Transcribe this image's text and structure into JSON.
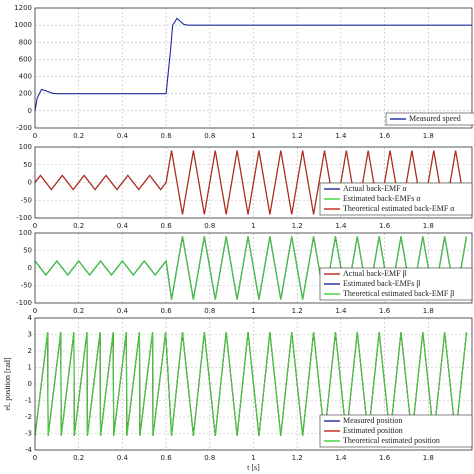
{
  "chart_data": [
    {
      "type": "line",
      "xlim": [
        0,
        2
      ],
      "xticks": [
        0,
        0.2,
        0.4,
        0.6,
        0.8,
        1,
        1.2,
        1.4,
        1.6,
        1.8
      ],
      "ylim": [
        -200,
        1200
      ],
      "yticks": [
        -200,
        0,
        200,
        400,
        600,
        800,
        1000,
        1200
      ],
      "grid": true,
      "legend": "lower right",
      "x": [
        0,
        0.01,
        0.03,
        0.05,
        0.08,
        0.1,
        0.6,
        0.62,
        0.63,
        0.65,
        0.68,
        0.7,
        2
      ],
      "series": [
        {
          "name": "Measured speed",
          "color": "#1a2a9c",
          "values": [
            0,
            150,
            250,
            235,
            205,
            200,
            200,
            700,
            1000,
            1080,
            1010,
            1000,
            1000
          ]
        }
      ]
    },
    {
      "type": "line",
      "xlim": [
        0,
        2
      ],
      "xticks": [
        0,
        0.2,
        0.4,
        0.6,
        0.8,
        1,
        1.2,
        1.4,
        1.6,
        1.8
      ],
      "ylim": [
        -100,
        100
      ],
      "yticks": [
        -100,
        -50,
        0,
        50,
        100
      ],
      "grid": true,
      "legend": "lower right",
      "x": [
        0,
        0.025,
        0.05,
        0.075,
        0.1,
        0.125,
        0.15,
        0.175,
        0.2,
        0.225,
        0.25,
        0.275,
        0.3,
        0.325,
        0.35,
        0.375,
        0.4,
        0.425,
        0.45,
        0.475,
        0.5,
        0.525,
        0.55,
        0.575,
        0.6,
        0.625,
        0.675,
        0.725,
        0.775,
        0.825,
        0.875,
        0.925,
        0.975,
        1.025,
        1.075,
        1.125,
        1.175,
        1.225,
        1.275,
        1.325,
        1.375,
        1.425,
        1.475,
        1.525,
        1.575,
        1.625,
        1.675,
        1.725,
        1.775,
        1.825,
        1.875,
        1.925,
        1.975
      ],
      "series": [
        {
          "name": "Actual back-EMF α",
          "color": "#1a2a9c",
          "values": [
            0,
            20,
            0,
            -20,
            0,
            20,
            0,
            -20,
            0,
            20,
            0,
            -20,
            0,
            20,
            0,
            -20,
            0,
            20,
            0,
            -20,
            0,
            20,
            0,
            -20,
            0,
            90,
            -90,
            90,
            -90,
            90,
            -90,
            90,
            -90,
            90,
            -90,
            90,
            -90,
            90,
            -90,
            90,
            -90,
            90,
            -90,
            90,
            -90,
            90,
            -90,
            90,
            -90,
            90,
            -90,
            90,
            -90
          ]
        },
        {
          "name": "Estimated back-EMFs α",
          "color": "#3ad23a",
          "values": [
            0,
            20,
            0,
            -20,
            0,
            20,
            0,
            -20,
            0,
            20,
            0,
            -20,
            0,
            20,
            0,
            -20,
            0,
            20,
            0,
            -20,
            0,
            20,
            0,
            -20,
            0,
            90,
            -90,
            90,
            -90,
            90,
            -90,
            90,
            -90,
            90,
            -90,
            90,
            -90,
            90,
            -90,
            90,
            -90,
            90,
            -90,
            90,
            -90,
            90,
            -90,
            90,
            -90,
            90,
            -90,
            90,
            -90
          ]
        },
        {
          "name": "Theoretical estimated back-EMF α",
          "color": "#c8201e",
          "values": [
            0,
            20,
            0,
            -20,
            0,
            20,
            0,
            -20,
            0,
            20,
            0,
            -20,
            0,
            20,
            0,
            -20,
            0,
            20,
            0,
            -20,
            0,
            20,
            0,
            -20,
            0,
            90,
            -90,
            90,
            -90,
            90,
            -90,
            90,
            -90,
            90,
            -90,
            90,
            -90,
            90,
            -90,
            90,
            -90,
            90,
            -90,
            90,
            -90,
            90,
            -90,
            90,
            -90,
            90,
            -90,
            90,
            -90
          ]
        }
      ]
    },
    {
      "type": "line",
      "xlim": [
        0,
        2
      ],
      "xticks": [
        0,
        0.2,
        0.4,
        0.6,
        0.8,
        1,
        1.2,
        1.4,
        1.6,
        1.8
      ],
      "ylim": [
        -100,
        100
      ],
      "yticks": [
        -100,
        -50,
        0,
        50,
        100
      ],
      "grid": true,
      "legend": "lower right",
      "x": [
        0,
        0.025,
        0.05,
        0.075,
        0.1,
        0.125,
        0.15,
        0.175,
        0.2,
        0.225,
        0.25,
        0.275,
        0.3,
        0.325,
        0.35,
        0.375,
        0.4,
        0.425,
        0.45,
        0.475,
        0.5,
        0.525,
        0.55,
        0.575,
        0.6,
        0.625,
        0.675,
        0.725,
        0.775,
        0.825,
        0.875,
        0.925,
        0.975,
        1.025,
        1.075,
        1.125,
        1.175,
        1.225,
        1.275,
        1.325,
        1.375,
        1.425,
        1.475,
        1.525,
        1.575,
        1.625,
        1.675,
        1.725,
        1.775,
        1.825,
        1.875,
        1.925,
        1.975
      ],
      "series": [
        {
          "name": "Actual back-EMF β",
          "color": "#c8201e",
          "values": [
            20,
            0,
            -20,
            0,
            20,
            0,
            -20,
            0,
            20,
            0,
            -20,
            0,
            20,
            0,
            -20,
            0,
            20,
            0,
            -20,
            0,
            20,
            0,
            -20,
            0,
            20,
            -90,
            90,
            -90,
            90,
            -90,
            90,
            -90,
            90,
            -90,
            90,
            -90,
            90,
            -90,
            90,
            -90,
            90,
            -90,
            90,
            -90,
            90,
            -90,
            90,
            -90,
            90,
            -90,
            90,
            -90,
            90
          ]
        },
        {
          "name": "Estimated back-EMFs β",
          "color": "#1a2a9c",
          "values": [
            20,
            0,
            -20,
            0,
            20,
            0,
            -20,
            0,
            20,
            0,
            -20,
            0,
            20,
            0,
            -20,
            0,
            20,
            0,
            -20,
            0,
            20,
            0,
            -20,
            0,
            20,
            -90,
            90,
            -90,
            90,
            -90,
            90,
            -90,
            90,
            -90,
            90,
            -90,
            90,
            -90,
            90,
            -90,
            90,
            -90,
            90,
            -90,
            90,
            -90,
            90,
            -90,
            90,
            -90,
            90,
            -90,
            90
          ]
        },
        {
          "name": "Theoretical estimated back-EMF β",
          "color": "#3ad23a",
          "values": [
            20,
            0,
            -20,
            0,
            20,
            0,
            -20,
            0,
            20,
            0,
            -20,
            0,
            20,
            0,
            -20,
            0,
            20,
            0,
            -20,
            0,
            20,
            0,
            -20,
            0,
            20,
            -90,
            90,
            -90,
            90,
            -90,
            90,
            -90,
            90,
            -90,
            90,
            -90,
            90,
            -90,
            90,
            -90,
            90,
            -90,
            90,
            -90,
            90,
            -90,
            90,
            -90,
            90,
            -90,
            90,
            -90,
            90
          ]
        }
      ]
    },
    {
      "type": "line",
      "xlim": [
        0,
        2
      ],
      "xticks": [
        0,
        0.2,
        0.4,
        0.6,
        0.8,
        1,
        1.2,
        1.4,
        1.6,
        1.8
      ],
      "ylim": [
        -4,
        4
      ],
      "yticks": [
        -4,
        -3,
        -2,
        -1,
        0,
        1,
        2,
        3,
        4
      ],
      "grid": true,
      "legend": "lower right",
      "xlabel": "t [s]",
      "ylabel": "el. position [rad]",
      "x": [
        0,
        0.058,
        0.06,
        0.118,
        0.12,
        0.178,
        0.18,
        0.238,
        0.24,
        0.298,
        0.3,
        0.358,
        0.36,
        0.418,
        0.42,
        0.478,
        0.48,
        0.538,
        0.54,
        0.598,
        0.625,
        0.675,
        0.725,
        0.775,
        0.825,
        0.875,
        0.925,
        0.975,
        1.025,
        1.075,
        1.125,
        1.175,
        1.225,
        1.275,
        1.325,
        1.375,
        1.425,
        1.475,
        1.525,
        1.575,
        1.625,
        1.675,
        1.725,
        1.775,
        1.825,
        1.875,
        1.925,
        1.975
      ],
      "series": [
        {
          "name": "Measured position",
          "color": "#1a2a9c",
          "values": [
            -3.14,
            3.14,
            -3.14,
            3.14,
            -3.14,
            3.14,
            -3.14,
            3.14,
            -3.14,
            3.14,
            -3.14,
            3.14,
            -3.14,
            3.14,
            -3.14,
            3.14,
            -3.14,
            3.14,
            -3.14,
            3.14,
            -3.14,
            3.14,
            -3.14,
            3.14,
            -3.14,
            3.14,
            -3.14,
            3.14,
            -3.14,
            3.14,
            -3.14,
            3.14,
            -3.14,
            3.14,
            -3.14,
            3.14,
            -3.14,
            3.14,
            -3.14,
            3.14,
            -3.14,
            3.14,
            -3.14,
            3.14,
            -3.14,
            3.14,
            -3.14,
            3.14
          ]
        },
        {
          "name": "Estimated position",
          "color": "#c8201e",
          "values": [
            -3.14,
            3.14,
            -3.14,
            3.14,
            -3.14,
            3.14,
            -3.14,
            3.14,
            -3.14,
            3.14,
            -3.14,
            3.14,
            -3.14,
            3.14,
            -3.14,
            3.14,
            -3.14,
            3.14,
            -3.14,
            3.14,
            -3.14,
            3.14,
            -3.14,
            3.14,
            -3.14,
            3.14,
            -3.14,
            3.14,
            -3.14,
            3.14,
            -3.14,
            3.14,
            -3.14,
            3.14,
            -3.14,
            3.14,
            -3.14,
            3.14,
            -3.14,
            3.14,
            -3.14,
            3.14,
            -3.14,
            3.14,
            -3.14,
            3.14,
            -3.14,
            3.14
          ]
        },
        {
          "name": "Theoretical estimated position",
          "color": "#3ad23a",
          "values": [
            -3.14,
            3.14,
            -3.14,
            3.14,
            -3.14,
            3.14,
            -3.14,
            3.14,
            -3.14,
            3.14,
            -3.14,
            3.14,
            -3.14,
            3.14,
            -3.14,
            3.14,
            -3.14,
            3.14,
            -3.14,
            3.14,
            -3.14,
            3.14,
            -3.14,
            3.14,
            -3.14,
            3.14,
            -3.14,
            3.14,
            -3.14,
            3.14,
            -3.14,
            3.14,
            -3.14,
            3.14,
            -3.14,
            3.14,
            -3.14,
            3.14,
            -3.14,
            3.14,
            -3.14,
            3.14,
            -3.14,
            3.14,
            -3.14,
            3.14,
            -3.14,
            3.14
          ]
        }
      ]
    }
  ]
}
